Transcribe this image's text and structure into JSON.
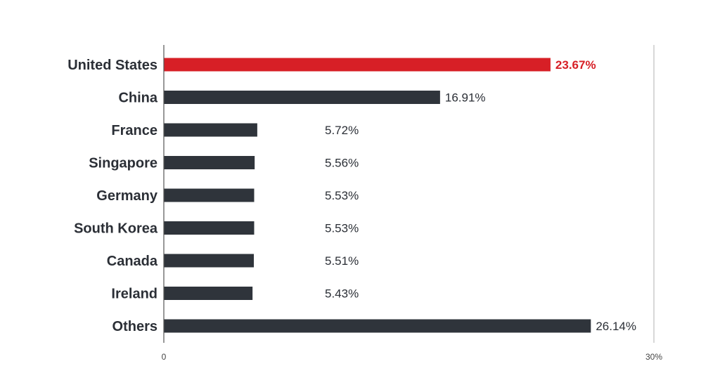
{
  "chart_data": {
    "type": "bar",
    "orientation": "horizontal",
    "title": "",
    "xlabel": "",
    "ylabel": "",
    "categories": [
      "United States",
      "China",
      "France",
      "Singapore",
      "Germany",
      "South Korea",
      "Canada",
      "Ireland",
      "Others"
    ],
    "values": [
      23.67,
      16.91,
      5.72,
      5.56,
      5.53,
      5.53,
      5.51,
      5.43,
      26.14
    ],
    "value_labels": [
      "23.67%",
      "16.91%",
      "5.72%",
      "5.56%",
      "5.53%",
      "5.53%",
      "5.51%",
      "5.43%",
      "26.14%"
    ],
    "xlim": [
      0,
      30
    ],
    "ticks": [
      {
        "value": 0,
        "label": "0"
      },
      {
        "value": 30,
        "label": "30%"
      }
    ],
    "grid": false,
    "legend": "none",
    "highlight_index": 0,
    "colors": {
      "bar": "#2f343b",
      "highlight": "#d71f26",
      "axis": "#555555",
      "reference_line": "#b0b0b0",
      "text": "#2b2f36"
    }
  }
}
